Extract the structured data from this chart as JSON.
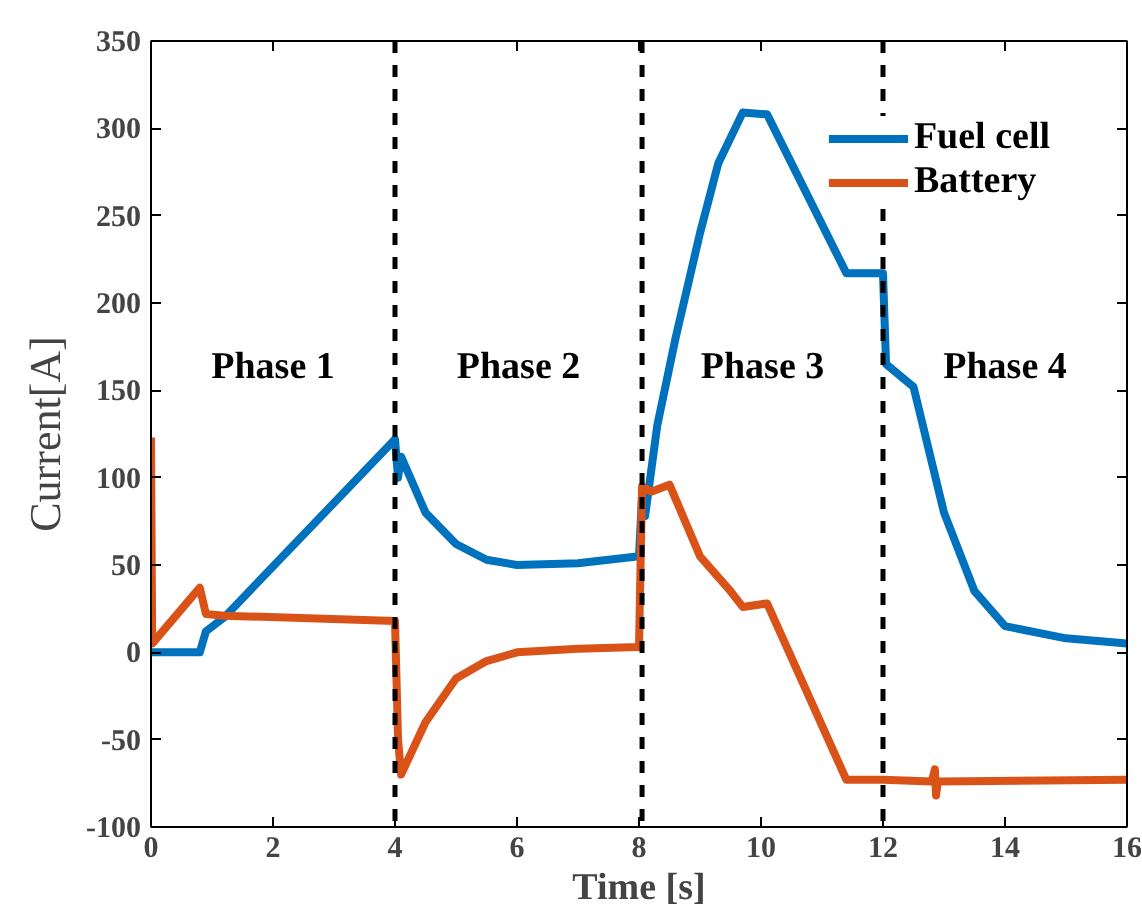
{
  "chart_data": {
    "type": "line",
    "xlabel": "Time [s]",
    "ylabel": "Current[A]",
    "xlim": [
      0,
      16
    ],
    "ylim": [
      -100,
      350
    ],
    "xticks": [
      0,
      2,
      4,
      6,
      8,
      10,
      12,
      14,
      16
    ],
    "yticks": [
      -100,
      -50,
      0,
      50,
      100,
      150,
      200,
      250,
      300,
      350
    ],
    "grid": false,
    "legend": "top right",
    "line_style": "solid",
    "marker": "none",
    "series": [
      {
        "name": "Fuel cell",
        "color": "#0072bd",
        "x": [
          0,
          0.8,
          0.9,
          1.2,
          4.0,
          4.05,
          4.1,
          4.5,
          5,
          5.5,
          6,
          7,
          8.0,
          8.05,
          8.1,
          8.3,
          8.6,
          9,
          9.3,
          9.7,
          10.1,
          11.4,
          12,
          12.05,
          12.5,
          13,
          13.5,
          14,
          15,
          16
        ],
        "values": [
          0,
          0,
          12,
          20,
          122,
          100,
          112,
          80,
          62,
          53,
          50,
          51,
          55,
          90,
          78,
          130,
          180,
          240,
          280,
          309,
          308,
          217,
          217,
          165,
          152,
          80,
          35,
          15,
          8,
          5
        ]
      },
      {
        "name": "Battery",
        "color": "#d95319",
        "x": [
          0,
          0.02,
          0.8,
          0.9,
          1.2,
          4.0,
          4.05,
          4.1,
          4.5,
          5,
          5.5,
          6,
          7,
          8.0,
          8.05,
          8.2,
          8.5,
          9,
          9.5,
          9.7,
          10.1,
          11.4,
          12,
          12.8,
          12.85,
          12.87,
          12.9,
          16
        ],
        "values": [
          123,
          5,
          37,
          22,
          21,
          18,
          -50,
          -70,
          -40,
          -15,
          -5,
          0,
          2,
          3,
          95,
          92,
          96,
          55,
          35,
          26,
          28,
          -73,
          -73,
          -74,
          -67,
          -82,
          -74,
          -73
        ]
      }
    ],
    "ref_lines": [
      {
        "axis": "x",
        "value": 4,
        "color": "#000000",
        "line_style": "dashed"
      },
      {
        "axis": "x",
        "value": 8.05,
        "color": "#000000",
        "line_style": "dashed"
      },
      {
        "axis": "x",
        "value": 12,
        "color": "#000000",
        "line_style": "dashed"
      }
    ],
    "annotations": [
      "Phase 1",
      "Phase 2",
      "Phase 3",
      "Phase 4"
    ]
  }
}
